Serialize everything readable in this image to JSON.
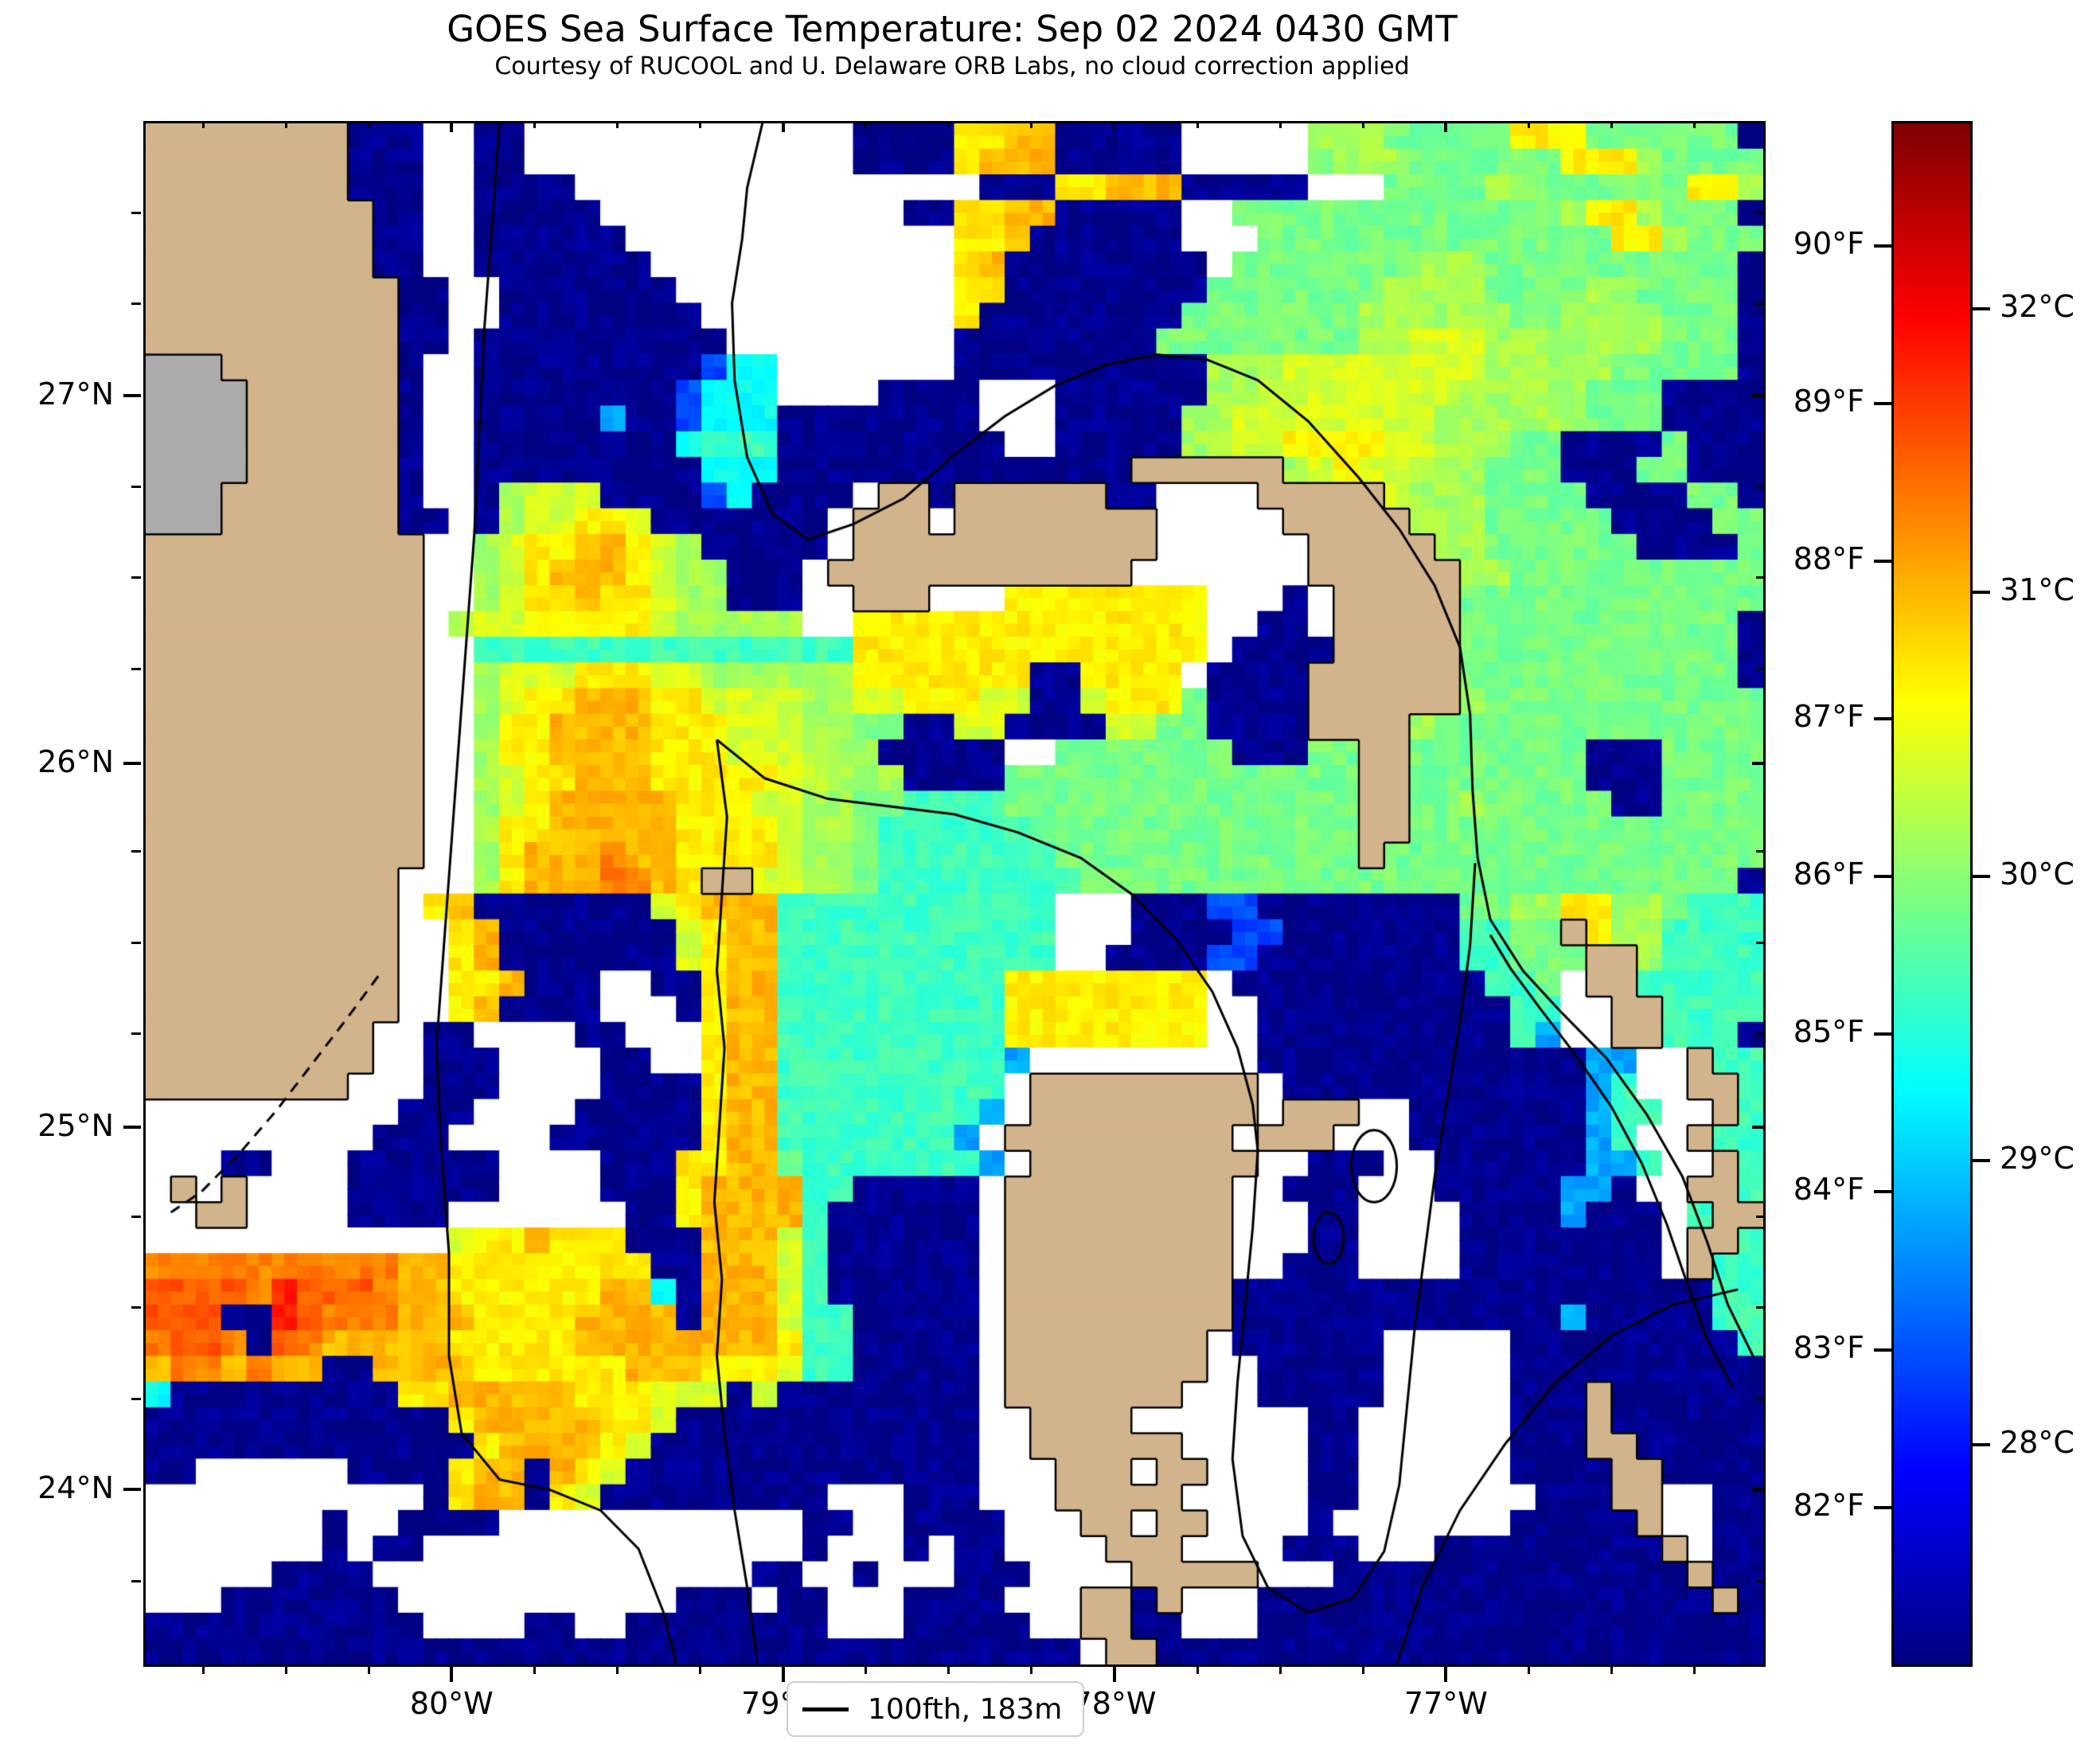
{
  "title": "GOES Sea Surface Temperature: Sep 02 2024 0430 GMT",
  "subtitle": "Courtesy of RUCOOL and U. Delaware ORB Labs, no cloud correction applied",
  "legend": {
    "label": "100fth, 183m"
  },
  "colors": {
    "land": "#d2b48c",
    "lake_gray": "#ababab",
    "cloud": "#ffffff",
    "contour": "#000000",
    "frame": "#000000",
    "background": "#ffffff"
  },
  "chart_data": {
    "type": "heatmap",
    "title": "GOES Sea Surface Temperature: Sep 02 2024 0430 GMT",
    "subtitle": "Courtesy of RUCOOL and U. Delaware ORB Labs, no cloud correction applied",
    "colormap": "jet",
    "legend_entry": "100fth, 183m",
    "x_axis": {
      "ticks": [
        {
          "label": "80°W",
          "f": 0.1906
        },
        {
          "label": "79°W",
          "f": 0.3955
        },
        {
          "label": "78°W",
          "f": 0.6004
        },
        {
          "label": "77°W",
          "f": 0.8053
        }
      ],
      "minor_step_f": 0.05123
    },
    "y_axis": {
      "ticks": [
        {
          "label": "27°N",
          "f": 0.178
        },
        {
          "label": "26°N",
          "f": 0.417
        },
        {
          "label": "25°N",
          "f": 0.653
        },
        {
          "label": "24°N",
          "f": 0.888
        }
      ],
      "minor_step_f": 0.0592
    },
    "colorbar": {
      "range_f": [
        81.02,
        90.79
      ],
      "range_c": [
        27.23,
        32.66
      ],
      "f_ticks": [
        90,
        89,
        88,
        87,
        86,
        85,
        84,
        83,
        82
      ],
      "c_ticks": [
        32,
        31,
        30,
        29,
        28
      ],
      "f_suffix": "°F",
      "c_suffix": "°C"
    },
    "grid": {
      "cols": 64,
      "rows": 60,
      "cell_legend": {
        "L": "land",
        "G": "inland-lake-gray",
        ".": "cloud/no-data",
        "0": 27.3,
        "1": 28.3,
        "2": 28.8,
        "3": 29.3,
        "4": 29.6,
        "5": 29.9,
        "6": 30.15,
        "7": 30.4,
        "8": 30.7,
        "9": 31.0,
        "a": 31.3,
        "b": 31.5,
        "c": 31.8
      },
      "cells": [
        "LLLLLLLL000..00.............0000889900000.....66655555888555555",
        "LLLLLLLL000..00.............0000899900000.....566655555588865555",
        "LLLLLLLL000..0000................00088999000 00...5555665555558865555",
        "LLLLLLLLL00..00000............00889900000..55555555555556886555",
        "LLLLLLLLL00..000000.............889000000...55555555555555886555",
        "LLLLLLLLL00..0000000............8900000000.5555555666555 5555555",
        "LLLLLLLLLL00..0000000...........880000000055555556666555 5665555",
        "LLLLLLLLLL00..00000000..........800000000555555566666655 6666555",
        "LLLLLLLLLL00.0000000000.........000000005555555566777666 6666555",
        "GGGLLLLLLL0..000000000133.......000000000066677777777666 6655555",
        "GGGGLLLLLL0..000000001333....0000...00000066777777776666 6555000",
        "GGGGLLLLLL0..000002001333000000 00...0000066777777776666665550000",
        "GGGGLLLLLL0..000000003444000000000..0000066778888776665500005000",
        "GGGGLLLLLL0..00000000033300000000000000LLLLLL67877666555 0005500",
        "GGGLLLLLLL0..0677700001300 00.LL0LLLLLL00....LLLLL766655550000550",
        "GGGLLLLLLL00.06778870000000.LLL.LLLLLLLL.....LLLLL66655555000055",
        "LLLLLLLLLLL..67889987600000.LLLLLLLLLLLL......LLLLL6655555500005",
        "LLLLLLLLLLL..6789998766000.LLLLLLLLLLLL.......LLLLLL665555555555",
        "LLLLLLLLLLL..6788988766000..LLL...88888888...0.LLLLL555555555555",
        "LLLLLLLLLLL.6778888876666 6..88888888888888..00.LLLLL55555555555",
        "LLLLLLLLLLL..444444444444444888888888888 88.0000LLLLL55555555555",
        "LLLLLLLLLLL..677788877666666888888800888 8.0000LLLLLL55555555555",
        "LLLLLLLLLLL..678899988777766778887700788850000LLLLLL655555555555",
        "LLLLLLLLLLL..688999988877766550077000077550000LLLL65555555555555",
        "LLLLLLLLLLL..68899998887776660000 0..55555550005 5LL5555555 0005555",
        "LLLLLLLLLLL..6788999888887766600005555555555555 5LL5555555 0005555",
        "LLLLLLLLLLL..678999998887766554444555555555555 55LL55655555005555",
        "LLLLLLLLLLL..688999998888766544444455555555555 55LL55555555555555",
        "LLLLLLLLLLL..68999a998888766544444445555555555 55L555555555555555",
        "LLLLLLLLLL...68999aa98LL776654444444455555555555555555 555555555",
        "LLLLLLLLLL.8900000007899944444444444...0001100000000556688665444",
        "LLLLLLLLLL..89000000078994444444444 4...000011000 0000445 5L8664444",
        "LLLLLLLLLL..890000000789944444444444..0000110000 00004455 5LL64444",
        "LLLLLLLLLL..889000..00899444444444888888 88.0000000000445 .LL44444",
        "LLLLLLLLLL..890000...08994444444448888888 8..000000000044..LL4444",
        "LLLLLLLLL..00....00...899444444444888888 88..00000000004 2..LL444",
        "LLLLLLLLL..000....00..8994444444442.........0000000000000 22..L444",
        "LLLLLLLL...000....00008994444444 44.LLLLLLLLL.000000000000 24..LL44",
        "..........000....000008994444444 42.LLLLLLLLL.LLL..0000000 244..L44",
        ".........000....00000 0899444444 42.LLLLLLLLL.LLL...000000 024..L44",
        "...00...000000....00088995444444 42.LLLLLLLLL..000..000000 224..L44",
        ".L.L....000000....0008999944000 00.LLLLLLLLL..000...00000 220..LL4",
        "..LL....0000.......008999940000 00.LLLLLLLLL...00....0000 2000.4LL",
        "............78898880009997400000 0.LLLLLLLLL...00....0000 0000.LL4",
        "aaaaaaaaaa99888888880099974000000.LLLLLLLLL..000....00000000.L44",
        "bbbbacbbba99888888993099974000000.LLLLLLLLL000000000000000000044",
        "bbb00cbaaa99988889999099974400000.LLLLLLLLL000000000000 020000044",
        "abba0ba999998888899999999844000 00.LLLLLLLL.000000.....0000000004",
        "9aa9a99009999888888999888744000 00.LLLLLLLL..00000.....0000000000",
        "3000000000889999988877707000000 00.LLLLLLL...00000.....000L000000",
        "000000000000899999887000000000000..LLLL.......00......000L000000",
        "000000000000089999870000000000000..LLLLLL.....00......000LL00000",
        "00......0000899098700000000000000...LLL.LL....00......0000LL0000",
        "...........0899087000000000...000...LLLLL.....00.......000LL..00",
        ".......0..0000............00..0000...LL.LL....0.......00000L..00",
        ".......0.00...............0...0.00....LLL....000...000000000L.00",
        ".....0000...............00..0...000....LLLLL...0000000000000 0L00",
        "...0000000...........000.00...0000...LL0L...000000000000 000000L0",
        "00000000000....00..00000000...00000..LL00...000000000000 00000000",
        "0000000000000000000000000000000000000.LL000000000000000000000000"
      ],
      "contours": [
        {
          "name": "florida-straits-100fathom",
          "dashed": false,
          "points": [
            [
              14,
              0
            ],
            [
              13.7,
              4
            ],
            [
              13.4,
              8
            ],
            [
              13.2,
              12
            ],
            [
              13.0,
              16
            ],
            [
              12.7,
              20
            ],
            [
              12.4,
              24
            ],
            [
              12.1,
              28
            ],
            [
              11.8,
              32
            ],
            [
              11.5,
              36
            ],
            [
              11.7,
              40
            ],
            [
              12.0,
              44
            ],
            [
              12.0,
              48
            ],
            [
              12.5,
              51
            ],
            [
              14,
              52.8
            ],
            [
              16,
              53.2
            ],
            [
              18,
              54
            ],
            [
              19.5,
              55.5
            ],
            [
              20.5,
              58
            ],
            [
              21,
              60
            ]
          ]
        },
        {
          "name": "little-bahama-bank-loop",
          "dashed": false,
          "points": [
            [
              24.4,
              0
            ],
            [
              23.8,
              2.5
            ],
            [
              23.6,
              4.5
            ],
            [
              23.2,
              7
            ],
            [
              23.3,
              10
            ],
            [
              23.8,
              13
            ],
            [
              24.8,
              15.2
            ],
            [
              26.2,
              16.2
            ],
            [
              28,
              15.6
            ],
            [
              30,
              14.6
            ],
            [
              32,
              12.9
            ],
            [
              34,
              11.4
            ],
            [
              36,
              10.2
            ],
            [
              38,
              9.4
            ],
            [
              40,
              9.0
            ],
            [
              42,
              9.2
            ],
            [
              44,
              10.0
            ],
            [
              46,
              11.6
            ],
            [
              48,
              13.8
            ],
            [
              49.6,
              15.8
            ],
            [
              51,
              18
            ],
            [
              52,
              20.4
            ],
            [
              52.4,
              23
            ],
            [
              52.5,
              26
            ],
            [
              52.7,
              28.6
            ],
            [
              53.2,
              31
            ]
          ]
        },
        {
          "name": "eleuthera-outer-line",
          "dashed": false,
          "points": [
            [
              53.2,
              31
            ],
            [
              54.5,
              33
            ],
            [
              56,
              34.6
            ],
            [
              57.8,
              36.4
            ],
            [
              59.4,
              38.6
            ],
            [
              60.8,
              41
            ],
            [
              61.8,
              43.6
            ],
            [
              62.6,
              46
            ],
            [
              63.6,
              48
            ]
          ]
        },
        {
          "name": "eleuthera-inner-line",
          "dashed": false,
          "points": [
            [
              53.2,
              31.6
            ],
            [
              54,
              32.9
            ],
            [
              55.2,
              34.5
            ],
            [
              56.6,
              36.3
            ],
            [
              58,
              38.3
            ],
            [
              59.2,
              40.5
            ],
            [
              60.2,
              42.9
            ],
            [
              61,
              45.2
            ],
            [
              61.8,
              47.4
            ],
            [
              62.8,
              49.2
            ]
          ]
        },
        {
          "name": "great-bahama-bank-west-edge",
          "dashed": false,
          "points": [
            [
              22.6,
              24
            ],
            [
              23,
              27
            ],
            [
              22.8,
              30
            ],
            [
              22.6,
              33
            ],
            [
              22.9,
              36
            ],
            [
              22.7,
              39
            ],
            [
              22.5,
              42
            ],
            [
              22.8,
              45
            ],
            [
              22.6,
              48
            ],
            [
              22.9,
              51
            ],
            [
              23.3,
              54
            ],
            [
              23.8,
              57
            ],
            [
              24.2,
              60
            ]
          ]
        },
        {
          "name": "tongue-of-the-ocean",
          "dashed": false,
          "points": [
            [
              22.6,
              24
            ],
            [
              24.5,
              25.5
            ],
            [
              27,
              26.3
            ],
            [
              29.5,
              26.6
            ],
            [
              32,
              26.9
            ],
            [
              34.5,
              27.6
            ],
            [
              37,
              28.6
            ],
            [
              39,
              30
            ],
            [
              40.8,
              31.8
            ],
            [
              42.2,
              33.8
            ],
            [
              43.2,
              36
            ],
            [
              43.8,
              38.2
            ],
            [
              44,
              40
            ],
            [
              43.8,
              43
            ],
            [
              43.5,
              46
            ],
            [
              43.2,
              49
            ],
            [
              43.0,
              52
            ],
            [
              43.4,
              55
            ],
            [
              44.4,
              57
            ],
            [
              46,
              58
            ],
            [
              47.8,
              57.4
            ],
            [
              49,
              55.6
            ],
            [
              49.6,
              53
            ],
            [
              49.9,
              50
            ],
            [
              50.2,
              47
            ],
            [
              50.6,
              44
            ],
            [
              51,
              41
            ],
            [
              51.5,
              38
            ],
            [
              52,
              35
            ],
            [
              52.4,
              32
            ],
            [
              52.6,
              28.8
            ]
          ]
        },
        {
          "name": "exuma-sound-line",
          "dashed": false,
          "points": [
            [
              49.5,
              60
            ],
            [
              50.5,
              57
            ],
            [
              52,
              54
            ],
            [
              53.8,
              51.4
            ],
            [
              55.8,
              49
            ],
            [
              58,
              47.2
            ],
            [
              60.4,
              46
            ],
            [
              63,
              45.4
            ]
          ]
        },
        {
          "name": "florida-keys-dashed-coast",
          "dashed": true,
          "points": [
            [
              9.2,
              33.2
            ],
            [
              8,
              34.8
            ],
            [
              6.6,
              36.6
            ],
            [
              5.2,
              38.4
            ],
            [
              3.8,
              40
            ],
            [
              2.2,
              41.6
            ],
            [
              1,
              42.4
            ]
          ]
        }
      ],
      "contour_ellipses": [
        {
          "name": "depth-eye-1",
          "cx": 48.6,
          "cy": 40.6,
          "rx": 0.9,
          "ry": 1.4
        },
        {
          "name": "depth-eye-2",
          "cx": 46.8,
          "cy": 43.4,
          "rx": 0.6,
          "ry": 1.0
        }
      ]
    }
  }
}
